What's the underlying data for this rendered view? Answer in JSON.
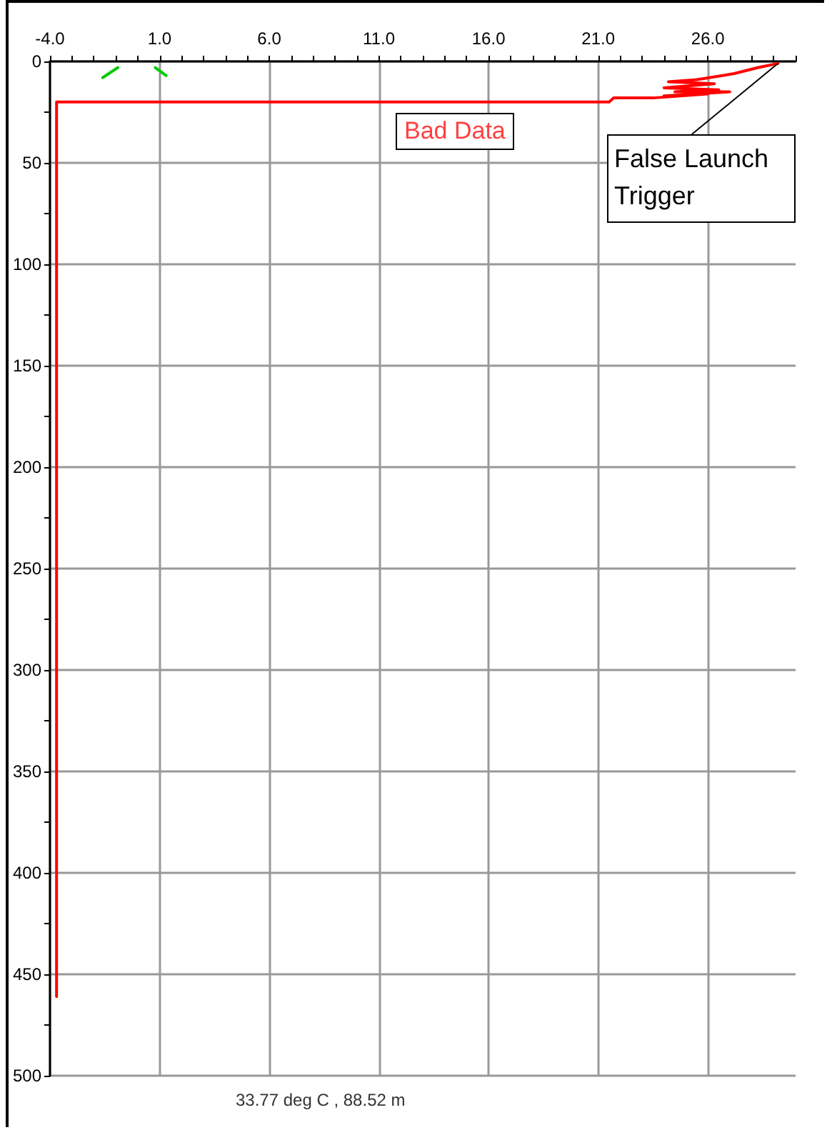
{
  "chart_data": {
    "type": "line",
    "x": [
      29.2,
      28.3,
      27.2,
      25.5,
      24.2,
      26.3,
      24.0,
      26.5,
      24.5,
      27.0,
      24.0,
      26.0,
      23.5,
      21.7,
      21.5,
      -3.7,
      -3.7
    ],
    "series": [
      {
        "color": "#ff0000",
        "values": [
          1,
          3,
          6,
          9,
          10,
          11,
          13,
          14,
          15,
          15,
          17,
          16,
          18,
          18,
          20,
          20,
          461
        ]
      },
      {
        "color": "#00cc00",
        "x": [
          -1.6,
          -0.9,
          null,
          0.8,
          1.3
        ],
        "values": [
          8,
          3,
          null,
          3,
          7
        ]
      }
    ],
    "xlim": [
      -4,
      30
    ],
    "xticks": [
      {
        "value": -4,
        "label": "-4.0"
      },
      {
        "value": -3,
        "label": null
      },
      {
        "value": -2,
        "label": null
      },
      {
        "value": -1,
        "label": null
      },
      {
        "value": 0,
        "label": null
      },
      {
        "value": 1,
        "label": "1.0"
      },
      {
        "value": 2,
        "label": null
      },
      {
        "value": 3,
        "label": null
      },
      {
        "value": 4,
        "label": null
      },
      {
        "value": 5,
        "label": null
      },
      {
        "value": 6,
        "label": "6.0"
      },
      {
        "value": 7,
        "label": null
      },
      {
        "value": 8,
        "label": null
      },
      {
        "value": 9,
        "label": null
      },
      {
        "value": 10,
        "label": null
      },
      {
        "value": 11,
        "label": "11.0"
      },
      {
        "value": 12,
        "label": null
      },
      {
        "value": 13,
        "label": null
      },
      {
        "value": 14,
        "label": null
      },
      {
        "value": 15,
        "label": null
      },
      {
        "value": 16,
        "label": "16.0"
      },
      {
        "value": 17,
        "label": null
      },
      {
        "value": 18,
        "label": null
      },
      {
        "value": 19,
        "label": null
      },
      {
        "value": 20,
        "label": null
      },
      {
        "value": 21,
        "label": "21.0"
      },
      {
        "value": 22,
        "label": null
      },
      {
        "value": 23,
        "label": null
      },
      {
        "value": 24,
        "label": null
      },
      {
        "value": 25,
        "label": null
      },
      {
        "value": 26,
        "label": "26.0"
      },
      {
        "value": 27,
        "label": null
      },
      {
        "value": 28,
        "label": null
      },
      {
        "value": 29,
        "label": null
      },
      {
        "value": 30,
        "label": null
      }
    ],
    "ylim": [
      500,
      0
    ],
    "yticks": [
      0,
      {
        "value": 25,
        "label": null
      },
      50,
      {
        "value": 75,
        "label": null
      },
      100,
      {
        "value": 125,
        "label": null
      },
      150,
      {
        "value": 175,
        "label": null
      },
      200,
      {
        "value": 225,
        "label": null
      },
      250,
      {
        "value": 275,
        "label": null
      },
      300,
      {
        "value": 325,
        "label": null
      },
      350,
      {
        "value": 375,
        "label": null
      },
      400,
      {
        "value": 425,
        "label": null
      },
      450,
      {
        "value": 475,
        "label": null
      },
      500
    ],
    "grid": true,
    "marker": "none",
    "line_style": "solid",
    "annotations": [
      {
        "text": "False Launch Trigger",
        "x": 29.2,
        "y": 1
      },
      "Bad Data",
      "33.77 deg C , 88.52 m"
    ]
  }
}
